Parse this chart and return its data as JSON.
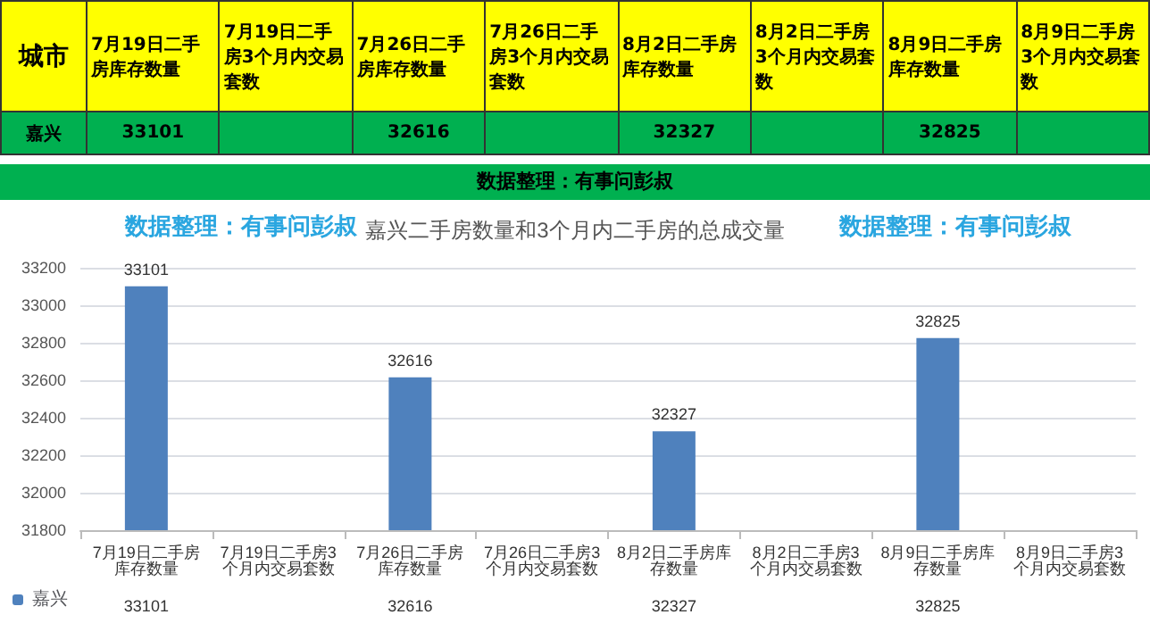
{
  "chart_data": {
    "type": "bar",
    "title": "嘉兴二手房数量和3个月内二手房的总成交量",
    "categories": [
      "7月19日二手房库存数量",
      "7月19日二手房3个月内交易套数",
      "7月26日二手房库存数量",
      "7月26日二手房3个月内交易套数",
      "8月2日二手房库存数量",
      "8月2日二手房3个月内交易套数",
      "8月9日二手房库存数量",
      "8月9日二手房3个月内交易套数"
    ],
    "series": [
      {
        "name": "嘉兴",
        "color": "#4f81bd",
        "values": [
          33101,
          null,
          32616,
          null,
          32327,
          null,
          32825,
          null
        ],
        "value_labels": [
          "33101",
          null,
          "32616",
          null,
          "32327",
          null,
          "32825",
          null
        ]
      }
    ],
    "ylim": [
      31800,
      33200
    ],
    "yticks": [
      31800,
      32000,
      32200,
      32400,
      32600,
      32800,
      33000,
      33200
    ],
    "grid": "y",
    "legend": "bottom left",
    "annotations": [
      "城市",
      "数据整理：有事问彭叔",
      "数据整理：有事问彭叔",
      "数据整理：有事问彭叔"
    ]
  }
}
